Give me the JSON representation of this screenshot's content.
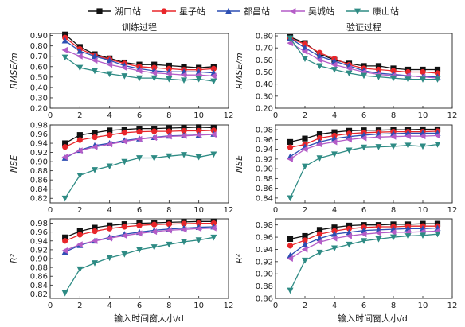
{
  "legend": [
    "湖口站",
    "星子站",
    "都昌站",
    "吴城站",
    "康山站"
  ],
  "colors": [
    "#111111",
    "#e8262a",
    "#2d4fb3",
    "#b45cc7",
    "#2e8b84"
  ],
  "markers": [
    "square",
    "circle",
    "triangle",
    "tri-left",
    "tri-down"
  ],
  "xlabels": {
    "left": "输入时间窗大小/d",
    "right": "输入时间窗大小/d"
  },
  "chart_data": [
    {
      "type": "line",
      "title": "训练过程",
      "ylabel": "RMSE/m",
      "x": [
        1,
        2,
        3,
        4,
        5,
        6,
        7,
        8,
        9,
        10,
        11
      ],
      "xlim": [
        0,
        12
      ],
      "xticks": [
        0,
        2,
        4,
        6,
        8,
        10,
        12
      ],
      "ylim": [
        0.2,
        0.92
      ],
      "yticks": [
        0.2,
        0.3,
        0.4,
        0.5,
        0.6,
        0.7,
        0.8,
        0.9
      ],
      "series": [
        {
          "name": "湖口站",
          "values": [
            0.91,
            0.79,
            0.72,
            0.68,
            0.64,
            0.62,
            0.62,
            0.61,
            0.6,
            0.59,
            0.6
          ]
        },
        {
          "name": "星子站",
          "values": [
            0.88,
            0.77,
            0.71,
            0.67,
            0.63,
            0.6,
            0.59,
            0.58,
            0.57,
            0.57,
            0.58
          ]
        },
        {
          "name": "都昌站",
          "values": [
            0.85,
            0.75,
            0.7,
            0.66,
            0.61,
            0.58,
            0.56,
            0.55,
            0.55,
            0.55,
            0.54
          ]
        },
        {
          "name": "吴城站",
          "values": [
            0.76,
            0.7,
            0.66,
            0.62,
            0.59,
            0.56,
            0.54,
            0.53,
            0.52,
            0.52,
            0.51
          ]
        },
        {
          "name": "康山站",
          "values": [
            0.69,
            0.59,
            0.56,
            0.53,
            0.51,
            0.49,
            0.49,
            0.48,
            0.47,
            0.48,
            0.46
          ]
        }
      ]
    },
    {
      "type": "line",
      "title": "验证过程",
      "ylabel": "RMSE/m",
      "x": [
        1,
        2,
        3,
        4,
        5,
        6,
        7,
        8,
        9,
        10,
        11
      ],
      "xlim": [
        0,
        12
      ],
      "xticks": [
        0,
        2,
        4,
        6,
        8,
        10,
        12
      ],
      "ylim": [
        0.2,
        0.82
      ],
      "yticks": [
        0.2,
        0.3,
        0.4,
        0.5,
        0.6,
        0.7,
        0.8
      ],
      "series": [
        {
          "name": "湖口站",
          "values": [
            0.79,
            0.74,
            0.65,
            0.6,
            0.57,
            0.55,
            0.55,
            0.53,
            0.52,
            0.52,
            0.52
          ]
        },
        {
          "name": "星子站",
          "values": [
            0.78,
            0.73,
            0.66,
            0.61,
            0.56,
            0.53,
            0.52,
            0.51,
            0.5,
            0.5,
            0.49
          ]
        },
        {
          "name": "都昌站",
          "values": [
            0.78,
            0.7,
            0.63,
            0.59,
            0.55,
            0.51,
            0.49,
            0.48,
            0.47,
            0.46,
            0.46
          ]
        },
        {
          "name": "吴城站",
          "values": [
            0.74,
            0.67,
            0.6,
            0.56,
            0.53,
            0.5,
            0.48,
            0.47,
            0.47,
            0.46,
            0.45
          ]
        },
        {
          "name": "康山站",
          "values": [
            0.78,
            0.61,
            0.55,
            0.52,
            0.49,
            0.47,
            0.46,
            0.45,
            0.44,
            0.44,
            0.44
          ]
        }
      ]
    },
    {
      "type": "line",
      "title": "",
      "ylabel": "NSE",
      "x": [
        1,
        2,
        3,
        4,
        5,
        6,
        7,
        8,
        9,
        10,
        11
      ],
      "xlim": [
        0,
        12
      ],
      "xticks": [
        0,
        2,
        4,
        6,
        8,
        10,
        12
      ],
      "ylim": [
        0.81,
        0.98
      ],
      "yticks": [
        0.82,
        0.84,
        0.86,
        0.88,
        0.9,
        0.92,
        0.94,
        0.96,
        0.98
      ],
      "series": [
        {
          "name": "湖口站",
          "values": [
            0.94,
            0.958,
            0.963,
            0.968,
            0.97,
            0.972,
            0.972,
            0.973,
            0.974,
            0.975,
            0.974
          ]
        },
        {
          "name": "星子站",
          "values": [
            0.932,
            0.947,
            0.953,
            0.958,
            0.963,
            0.965,
            0.966,
            0.966,
            0.967,
            0.967,
            0.968
          ]
        },
        {
          "name": "都昌站",
          "values": [
            0.908,
            0.925,
            0.935,
            0.94,
            0.946,
            0.95,
            0.953,
            0.956,
            0.957,
            0.958,
            0.96
          ]
        },
        {
          "name": "吴城站",
          "values": [
            0.91,
            0.924,
            0.932,
            0.938,
            0.944,
            0.949,
            0.952,
            0.955,
            0.956,
            0.958,
            0.959
          ]
        },
        {
          "name": "康山站",
          "values": [
            0.82,
            0.87,
            0.882,
            0.89,
            0.9,
            0.908,
            0.908,
            0.912,
            0.915,
            0.91,
            0.916
          ]
        }
      ]
    },
    {
      "type": "line",
      "title": "",
      "ylabel": "NSE",
      "x": [
        1,
        2,
        3,
        4,
        5,
        6,
        7,
        8,
        9,
        10,
        11
      ],
      "xlim": [
        0,
        12
      ],
      "xticks": [
        0,
        2,
        4,
        6,
        8,
        10,
        12
      ],
      "ylim": [
        0.83,
        0.99
      ],
      "yticks": [
        0.84,
        0.86,
        0.88,
        0.9,
        0.92,
        0.94,
        0.96,
        0.98
      ],
      "series": [
        {
          "name": "湖口站",
          "values": [
            0.955,
            0.962,
            0.971,
            0.975,
            0.978,
            0.979,
            0.979,
            0.98,
            0.98,
            0.981,
            0.981
          ]
        },
        {
          "name": "星子站",
          "values": [
            0.944,
            0.95,
            0.963,
            0.968,
            0.972,
            0.974,
            0.975,
            0.976,
            0.976,
            0.976,
            0.977
          ]
        },
        {
          "name": "都昌站",
          "values": [
            0.925,
            0.945,
            0.955,
            0.962,
            0.966,
            0.969,
            0.971,
            0.972,
            0.973,
            0.973,
            0.973
          ]
        },
        {
          "name": "吴城站",
          "values": [
            0.92,
            0.94,
            0.95,
            0.955,
            0.96,
            0.963,
            0.965,
            0.966,
            0.967,
            0.967,
            0.968
          ]
        },
        {
          "name": "康山站",
          "values": [
            0.84,
            0.905,
            0.922,
            0.93,
            0.938,
            0.944,
            0.945,
            0.946,
            0.948,
            0.946,
            0.95
          ]
        }
      ]
    },
    {
      "type": "line",
      "title": "",
      "ylabel": "R²",
      "x": [
        1,
        2,
        3,
        4,
        5,
        6,
        7,
        8,
        9,
        10,
        11
      ],
      "xlim": [
        0,
        12
      ],
      "xticks": [
        0,
        2,
        4,
        6,
        8,
        10,
        12
      ],
      "ylim": [
        0.81,
        0.99
      ],
      "yticks": [
        0.82,
        0.84,
        0.86,
        0.88,
        0.9,
        0.92,
        0.94,
        0.96,
        0.98
      ],
      "series": [
        {
          "name": "湖口站",
          "values": [
            0.948,
            0.962,
            0.97,
            0.975,
            0.978,
            0.98,
            0.981,
            0.982,
            0.983,
            0.984,
            0.984
          ]
        },
        {
          "name": "星子站",
          "values": [
            0.94,
            0.954,
            0.962,
            0.968,
            0.972,
            0.975,
            0.977,
            0.978,
            0.979,
            0.98,
            0.98
          ]
        },
        {
          "name": "都昌站",
          "values": [
            0.915,
            0.93,
            0.94,
            0.948,
            0.955,
            0.96,
            0.964,
            0.967,
            0.969,
            0.971,
            0.972
          ]
        },
        {
          "name": "吴城站",
          "values": [
            0.918,
            0.932,
            0.94,
            0.946,
            0.952,
            0.957,
            0.961,
            0.964,
            0.966,
            0.968,
            0.969
          ]
        },
        {
          "name": "康山站",
          "values": [
            0.822,
            0.876,
            0.89,
            0.902,
            0.91,
            0.92,
            0.926,
            0.932,
            0.938,
            0.942,
            0.948
          ]
        }
      ]
    },
    {
      "type": "line",
      "title": "",
      "ylabel": "R²",
      "x": [
        1,
        2,
        3,
        4,
        5,
        6,
        7,
        8,
        9,
        10,
        11
      ],
      "xlim": [
        0,
        12
      ],
      "xticks": [
        0,
        2,
        4,
        6,
        8,
        10,
        12
      ],
      "ylim": [
        0.86,
        0.99
      ],
      "yticks": [
        0.86,
        0.88,
        0.9,
        0.92,
        0.94,
        0.96,
        0.98
      ],
      "series": [
        {
          "name": "湖口站",
          "values": [
            0.957,
            0.962,
            0.972,
            0.976,
            0.979,
            0.98,
            0.98,
            0.981,
            0.981,
            0.982,
            0.982
          ]
        },
        {
          "name": "星子站",
          "values": [
            0.946,
            0.955,
            0.965,
            0.97,
            0.974,
            0.976,
            0.977,
            0.977,
            0.978,
            0.978,
            0.978
          ]
        },
        {
          "name": "都昌站",
          "values": [
            0.93,
            0.948,
            0.958,
            0.965,
            0.968,
            0.971,
            0.972,
            0.973,
            0.974,
            0.974,
            0.975
          ]
        },
        {
          "name": "吴城站",
          "values": [
            0.925,
            0.94,
            0.952,
            0.958,
            0.962,
            0.965,
            0.967,
            0.968,
            0.968,
            0.969,
            0.97
          ]
        },
        {
          "name": "康山站",
          "values": [
            0.873,
            0.922,
            0.935,
            0.942,
            0.948,
            0.954,
            0.957,
            0.96,
            0.962,
            0.963,
            0.965
          ]
        }
      ]
    }
  ]
}
